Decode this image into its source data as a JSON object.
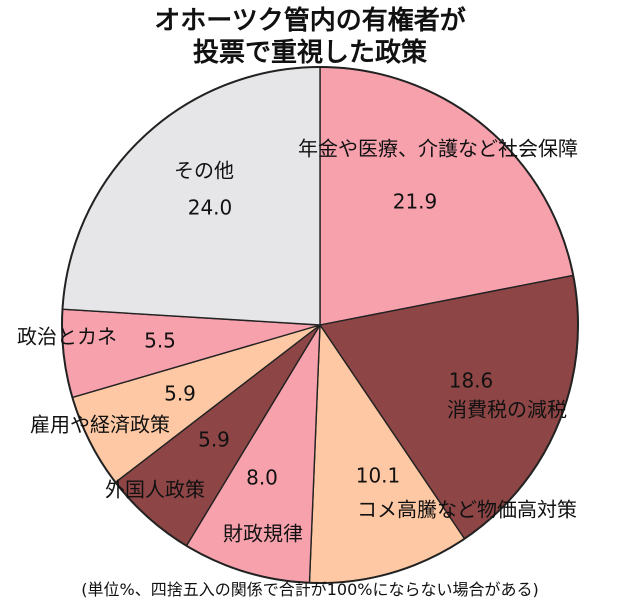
{
  "title_line1": "オホーツク管内の有権者が",
  "title_line2": "投票で重視した政策",
  "footnote": "(単位%、四捨五入の関係で合計が100%にならない場合がある)",
  "chart_data": {
    "type": "pie",
    "categories": [
      "年金や医療、介護など社会保障",
      "消費税の減税",
      "コメ高騰など物価高対策",
      "財政規律",
      "外国人政策",
      "雇用や経済政策",
      "政治とカネ",
      "その他"
    ],
    "values": [
      21.9,
      18.6,
      10.1,
      8.0,
      5.9,
      5.9,
      5.5,
      24.0
    ],
    "value_labels": [
      "21.9",
      "18.6",
      "10.1",
      "8.0",
      "5.9",
      "5.9",
      "5.5",
      "24.0"
    ],
    "start": "12 o'clock",
    "direction": "clockwise",
    "colors": [
      "#f7a1ad",
      "#8e4545",
      "#fdc8a3",
      "#f7a1ad",
      "#8e4545",
      "#fdc8a3",
      "#f7a1ad",
      "#e6e6e8"
    ]
  }
}
